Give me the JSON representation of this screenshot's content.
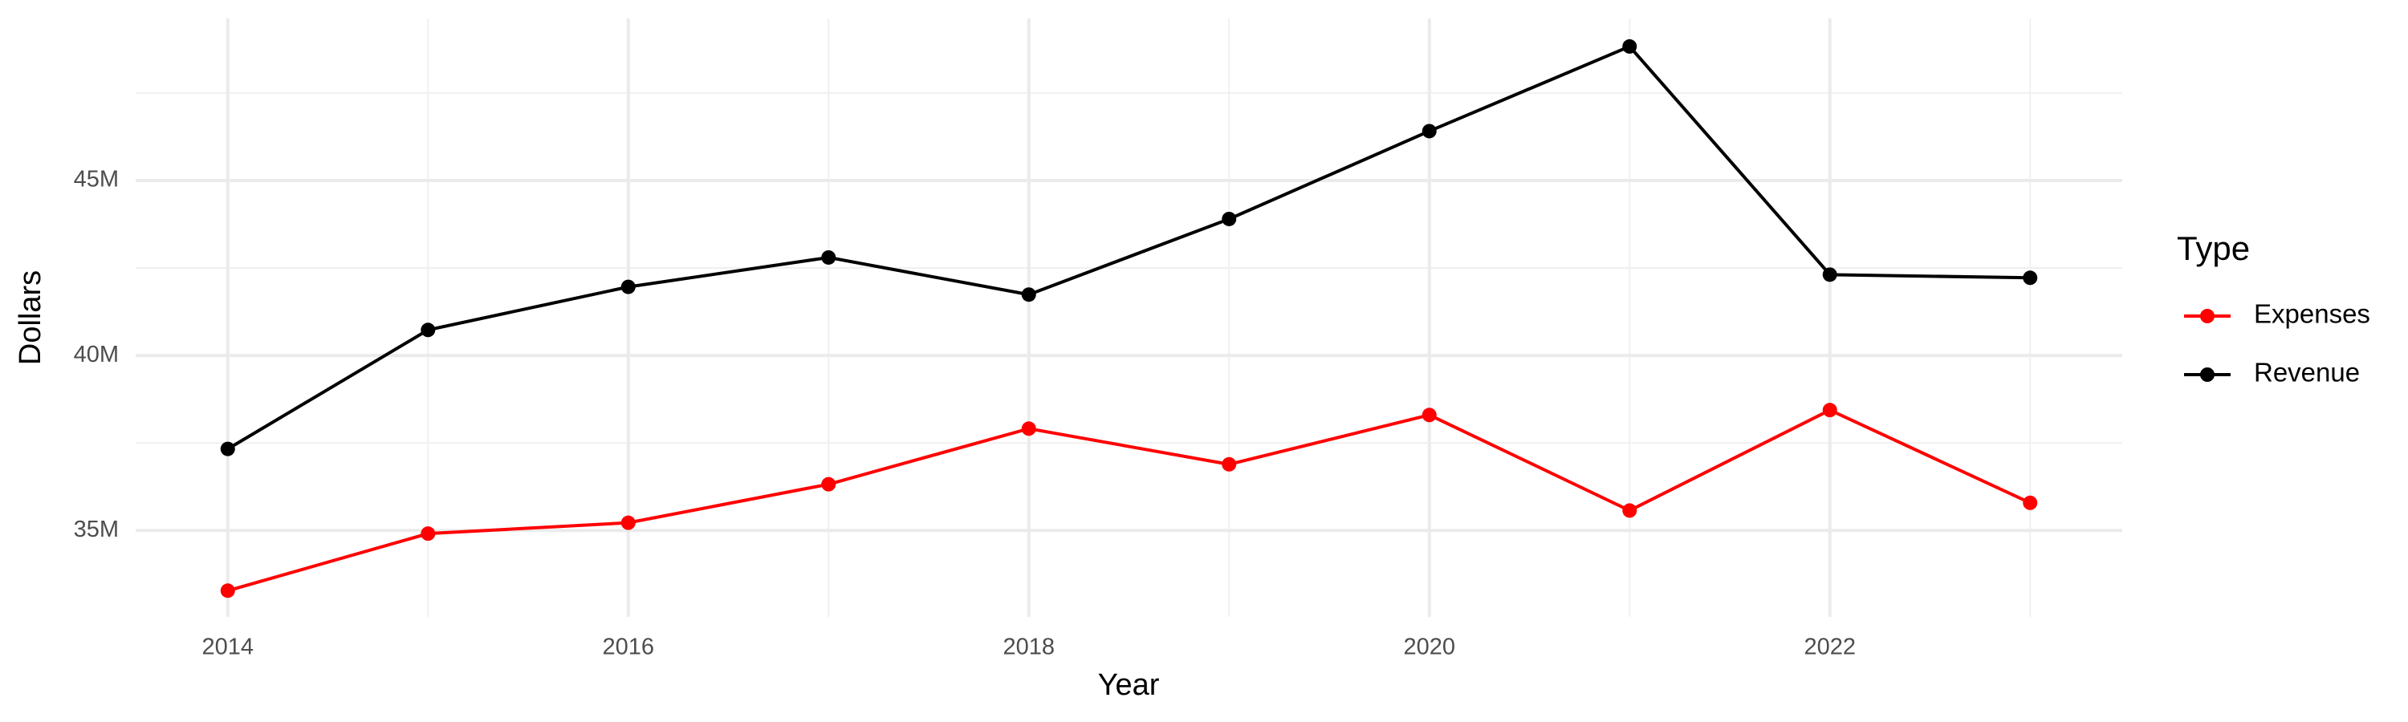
{
  "chart_data": {
    "type": "line",
    "x_label": "Year",
    "y_label": "Dollars",
    "legend_title": "Type",
    "x": [
      2014,
      2015,
      2016,
      2017,
      2018,
      2019,
      2020,
      2021,
      2022,
      2023
    ],
    "series": [
      {
        "name": "Expenses",
        "color": "#ff0000",
        "values": [
          33280000,
          34910000,
          35220000,
          36320000,
          37910000,
          36890000,
          38300000,
          35570000,
          38440000,
          35790000
        ]
      },
      {
        "name": "Revenue",
        "color": "#000000",
        "values": [
          37330000,
          40730000,
          41960000,
          42800000,
          41740000,
          43900000,
          46410000,
          48830000,
          42310000,
          42220000
        ]
      }
    ],
    "xlim": [
      2013.54,
      2023.46
    ],
    "xticks": [
      2014,
      2016,
      2018,
      2020,
      2022
    ],
    "ylim": [
      32530000,
      49630000
    ],
    "yticks": [
      {
        "value": 35000000,
        "label": "35M"
      },
      {
        "value": 40000000,
        "label": "40M"
      },
      {
        "value": 45000000,
        "label": "45M"
      }
    ],
    "grid": true,
    "legend": "right"
  }
}
